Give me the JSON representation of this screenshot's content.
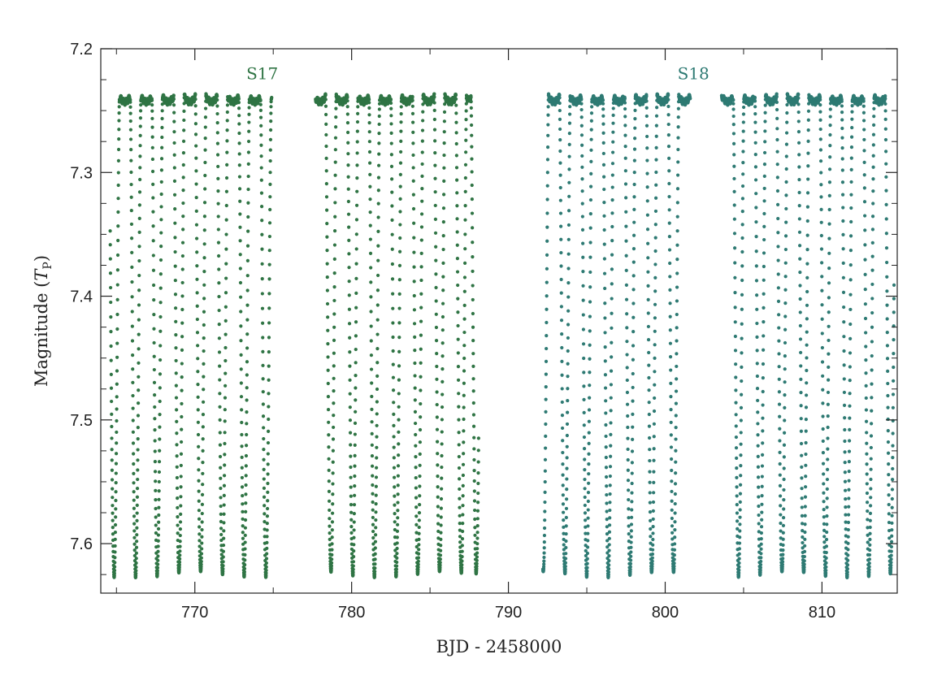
{
  "chart_data": {
    "type": "scatter",
    "title": "",
    "xlabel": "BJD - 2458000",
    "ylabel_main": "Magnitude (",
    "ylabel_italic": "T",
    "ylabel_sub": "P",
    "ylabel_close": ")",
    "xlim": [
      764.0,
      814.8
    ],
    "ylim": [
      7.2,
      7.64
    ],
    "y_inverted": true,
    "grid": false,
    "x_ticks": [
      770,
      780,
      790,
      800,
      810
    ],
    "x_tick_labels": [
      "770",
      "780",
      "790",
      "800",
      "810"
    ],
    "y_ticks": [
      7.2,
      7.3,
      7.4,
      7.5,
      7.6
    ],
    "y_tick_labels": [
      "7.2",
      "7.3",
      "7.4",
      "7.5",
      "7.6"
    ],
    "period_days": 1.3843,
    "max_brightness_mag": 7.235,
    "min_brightness_mag": 7.625,
    "series": [
      {
        "name": "S17",
        "color": "#2f7444",
        "segments": [
          [
            764.6,
            774.9
          ],
          [
            777.7,
            788.1
          ]
        ],
        "minima": [
          764.85,
          766.22,
          767.6,
          768.99,
          770.37,
          771.76,
          773.14,
          774.53,
          778.68,
          780.07,
          781.45,
          782.84,
          784.22,
          785.61,
          786.99,
          787.95
        ]
      },
      {
        "name": "S18",
        "color": "#2e7a73",
        "segments": [
          [
            792.2,
            801.6
          ],
          [
            803.6,
            814.6
          ]
        ],
        "minima": [
          792.22,
          793.6,
          794.99,
          796.37,
          797.76,
          799.14,
          800.53,
          804.68,
          806.06,
          807.45,
          808.83,
          810.22,
          811.6,
          812.99,
          814.37
        ]
      }
    ],
    "annotations": [
      {
        "text": "S17",
        "x": 774.3,
        "y": 7.22
      },
      {
        "text": "S18",
        "x": 801.8,
        "y": 7.22
      }
    ]
  }
}
